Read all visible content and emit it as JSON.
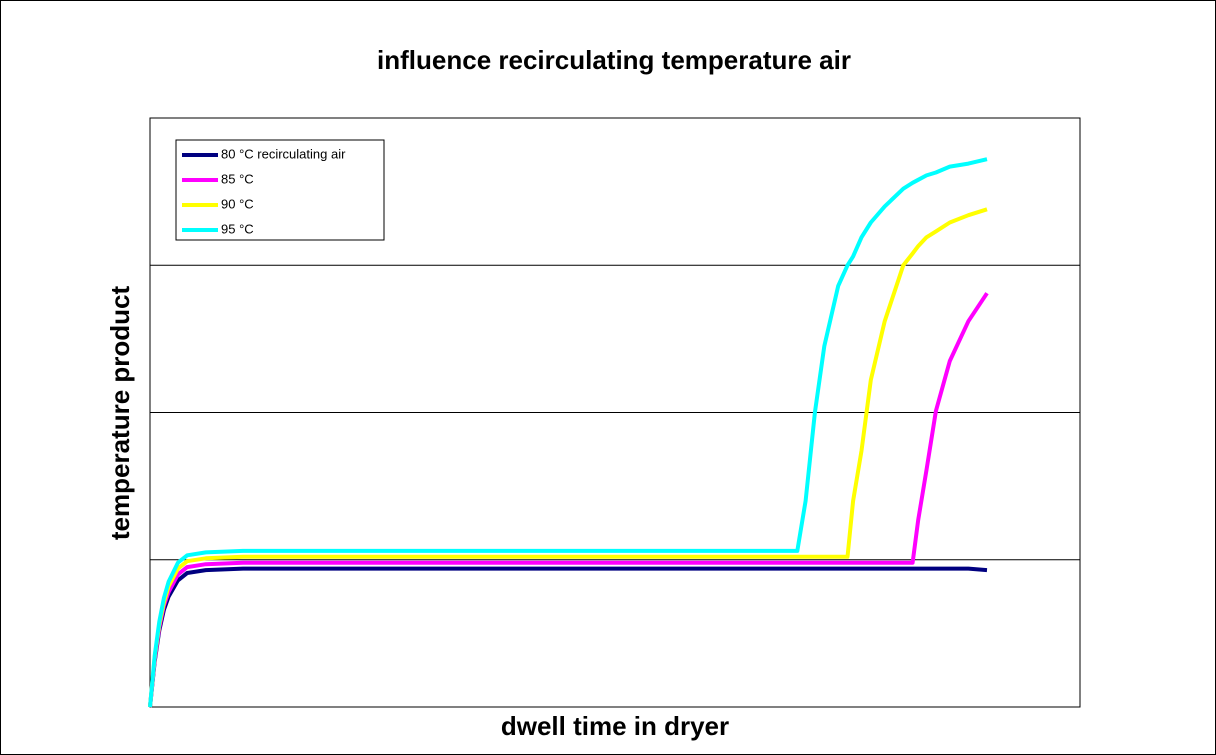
{
  "chart_data": {
    "type": "line",
    "title": "influence recirculating temperature air",
    "xlabel": "dwell time in dryer",
    "ylabel": "temperature product",
    "x": [
      0,
      0.5,
      1,
      1.5,
      2,
      3,
      4,
      6,
      10,
      20,
      30,
      40,
      50,
      60,
      65,
      69,
      69.6,
      70.5,
      71.5,
      72.5,
      74,
      75,
      75.6,
      76.5,
      77.5,
      79,
      81,
      82,
      82.6,
      83.5,
      84.5,
      86,
      88,
      90
    ],
    "xlim": [
      0,
      100
    ],
    "ylim": [
      0,
      4
    ],
    "yticks": [
      1,
      2,
      3
    ],
    "grid": true,
    "legend": "upper left",
    "series": [
      {
        "name": "80 °C recirculating air",
        "color": "#000080",
        "values": [
          0,
          0.31,
          0.52,
          0.66,
          0.75,
          0.86,
          0.91,
          0.93,
          0.94,
          0.94,
          0.94,
          0.94,
          0.94,
          0.94,
          0.94,
          0.94,
          0.94,
          0.94,
          0.94,
          0.94,
          0.94,
          0.94,
          0.94,
          0.94,
          0.94,
          0.94,
          0.94,
          0.94,
          0.94,
          0.94,
          0.94,
          0.94,
          0.94,
          0.93
        ]
      },
      {
        "name": "85 °C",
        "color": "#ff00ff",
        "values": [
          0,
          0.32,
          0.54,
          0.69,
          0.78,
          0.9,
          0.95,
          0.97,
          0.98,
          0.98,
          0.98,
          0.98,
          0.98,
          0.98,
          0.98,
          0.98,
          0.98,
          0.98,
          0.98,
          0.98,
          0.98,
          0.98,
          0.98,
          0.98,
          0.98,
          0.98,
          0.98,
          0.98,
          1.27,
          1.61,
          2.01,
          2.35,
          2.62,
          2.81
        ]
      },
      {
        "name": "90 °C",
        "color": "#ffff00",
        "values": [
          0,
          0.34,
          0.56,
          0.71,
          0.82,
          0.94,
          0.99,
          1.01,
          1.02,
          1.02,
          1.02,
          1.02,
          1.02,
          1.02,
          1.02,
          1.02,
          1.02,
          1.02,
          1.02,
          1.02,
          1.02,
          1.02,
          1.4,
          1.74,
          2.22,
          2.62,
          3.0,
          3.08,
          3.13,
          3.19,
          3.23,
          3.29,
          3.34,
          3.38
        ]
      },
      {
        "name": "95 °C",
        "color": "#00ffff",
        "values": [
          0,
          0.35,
          0.58,
          0.74,
          0.85,
          0.98,
          1.03,
          1.05,
          1.06,
          1.06,
          1.06,
          1.06,
          1.06,
          1.06,
          1.06,
          1.06,
          1.06,
          1.4,
          2.0,
          2.45,
          2.86,
          3.0,
          3.06,
          3.19,
          3.29,
          3.4,
          3.52,
          3.56,
          3.58,
          3.61,
          3.63,
          3.67,
          3.69,
          3.72
        ]
      }
    ]
  }
}
